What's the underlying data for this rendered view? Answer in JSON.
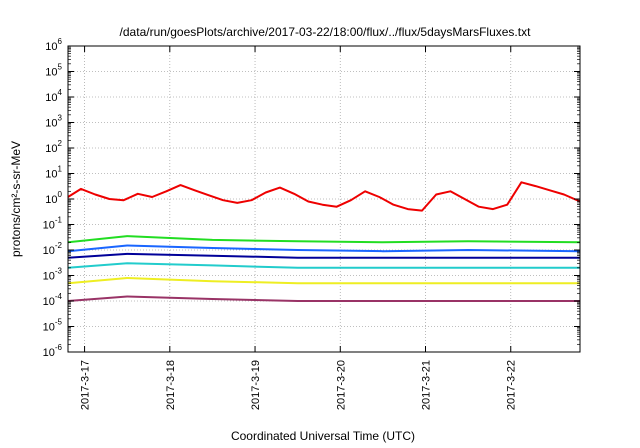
{
  "chart_data": {
    "type": "line",
    "title": "/data/run/goesPlots/archive/2017-03-22/18:00/flux/../flux/5daysMarsFluxes.txt",
    "xlabel": "Coordinated Universal Time (UTC)",
    "ylabel": "protons/cm²-s-sr-MeV",
    "yscale": "log",
    "ylim": [
      1e-06,
      1000000.0
    ],
    "xlim": [
      "2017-03-16T19:20",
      "2017-03-22T19:30"
    ],
    "xticks": [
      "2017-3-17",
      "2017-3-18",
      "2017-3-19",
      "2017-3-20",
      "2017-3-21",
      "2017-3-22"
    ],
    "yticks": [
      "10-6",
      "10-5",
      "10-4",
      "10-3",
      "10-2",
      "10-1",
      "100",
      "101",
      "102",
      "103",
      "104",
      "105",
      "106"
    ],
    "grid": true,
    "series": [
      {
        "color": "#ee0000",
        "x": [
          "2017-03-16T19:20",
          "2017-03-16T23:00",
          "2017-03-17T03:00",
          "2017-03-17T07:00",
          "2017-03-17T11:00",
          "2017-03-17T15:00",
          "2017-03-17T19:00",
          "2017-03-17T23:00",
          "2017-03-18T03:00",
          "2017-03-18T07:00",
          "2017-03-18T11:00",
          "2017-03-18T15:00",
          "2017-03-18T19:00",
          "2017-03-18T23:00",
          "2017-03-19T03:00",
          "2017-03-19T07:00",
          "2017-03-19T11:00",
          "2017-03-19T15:00",
          "2017-03-19T19:00",
          "2017-03-19T23:00",
          "2017-03-20T03:00",
          "2017-03-20T07:00",
          "2017-03-20T11:00",
          "2017-03-20T15:00",
          "2017-03-20T19:00",
          "2017-03-20T23:00",
          "2017-03-21T03:00",
          "2017-03-21T07:00",
          "2017-03-21T11:00",
          "2017-03-21T15:00",
          "2017-03-21T19:00",
          "2017-03-21T23:00",
          "2017-03-22T03:00",
          "2017-03-22T07:00",
          "2017-03-22T11:00",
          "2017-03-22T15:00",
          "2017-03-22T19:30"
        ],
        "values": [
          1.2,
          2.5,
          1.5,
          1.0,
          0.9,
          1.6,
          1.2,
          2.0,
          3.5,
          2.2,
          1.4,
          0.9,
          0.7,
          0.9,
          1.8,
          2.8,
          1.6,
          0.8,
          0.6,
          0.5,
          0.9,
          2.0,
          1.2,
          0.6,
          0.4,
          0.35,
          1.5,
          2.0,
          1.0,
          0.5,
          0.4,
          0.6,
          4.5,
          3.2,
          2.2,
          1.5,
          0.8
        ]
      },
      {
        "color": "#22dd22",
        "x": [
          "2017-03-16T19:20",
          "2017-03-17T12:00",
          "2017-03-18T12:00",
          "2017-03-19T12:00",
          "2017-03-20T12:00",
          "2017-03-21T12:00",
          "2017-03-22T19:30"
        ],
        "values": [
          0.02,
          0.035,
          0.025,
          0.022,
          0.02,
          0.022,
          0.02
        ]
      },
      {
        "color": "#1a66ff",
        "x": [
          "2017-03-16T19:20",
          "2017-03-17T12:00",
          "2017-03-18T12:00",
          "2017-03-19T12:00",
          "2017-03-20T12:00",
          "2017-03-21T12:00",
          "2017-03-22T19:30"
        ],
        "values": [
          0.009,
          0.015,
          0.012,
          0.01,
          0.009,
          0.01,
          0.009
        ]
      },
      {
        "color": "#000099",
        "x": [
          "2017-03-16T19:20",
          "2017-03-17T12:00",
          "2017-03-18T12:00",
          "2017-03-19T12:00",
          "2017-03-20T12:00",
          "2017-03-21T12:00",
          "2017-03-22T19:30"
        ],
        "values": [
          0.005,
          0.007,
          0.006,
          0.005,
          0.005,
          0.005,
          0.005
        ]
      },
      {
        "color": "#22cccc",
        "x": [
          "2017-03-16T19:20",
          "2017-03-17T12:00",
          "2017-03-18T12:00",
          "2017-03-19T12:00",
          "2017-03-20T12:00",
          "2017-03-21T12:00",
          "2017-03-22T19:30"
        ],
        "values": [
          0.002,
          0.003,
          0.0025,
          0.002,
          0.002,
          0.002,
          0.002
        ]
      },
      {
        "color": "#eeee22",
        "x": [
          "2017-03-16T19:20",
          "2017-03-17T12:00",
          "2017-03-18T12:00",
          "2017-03-19T12:00",
          "2017-03-20T12:00",
          "2017-03-21T12:00",
          "2017-03-22T19:30"
        ],
        "values": [
          0.0005,
          0.0008,
          0.0006,
          0.0005,
          0.0005,
          0.0005,
          0.0005
        ]
      },
      {
        "color": "#993366",
        "x": [
          "2017-03-16T19:20",
          "2017-03-17T12:00",
          "2017-03-18T12:00",
          "2017-03-19T12:00",
          "2017-03-20T12:00",
          "2017-03-21T12:00",
          "2017-03-22T19:30"
        ],
        "values": [
          0.0001,
          0.00015,
          0.00012,
          0.0001,
          0.0001,
          0.0001,
          0.0001
        ]
      }
    ]
  }
}
